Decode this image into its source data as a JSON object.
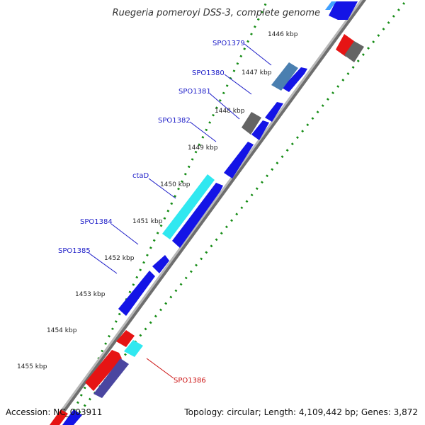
{
  "title": "Ruegeria pomeroyi DSS-3, complete genome",
  "footer": {
    "accession": "Accession: NC_003911",
    "summary": "Topology: circular; Length: 4,109,442 bp; Genes: 3,872"
  },
  "ticks": [
    "1446 kbp",
    "1447 kbp",
    "1448 kbp",
    "1449 kbp",
    "1450 kbp",
    "1451 kbp",
    "1452 kbp",
    "1453 kbp",
    "1454 kbp",
    "1455 kbp"
  ],
  "gene_labels": [
    {
      "text": "SPO1379",
      "color": "#1c1cc8"
    },
    {
      "text": "SPO1380",
      "color": "#1c1cc8"
    },
    {
      "text": "SPO1381",
      "color": "#1c1cc8"
    },
    {
      "text": "SPO1382",
      "color": "#1c1cc8"
    },
    {
      "text": "ctaD",
      "color": "#1c1cc8"
    },
    {
      "text": "SPO1384",
      "color": "#1c1cc8"
    },
    {
      "text": "SPO1385",
      "color": "#1c1cc8"
    },
    {
      "text": "SPO1386",
      "color": "#cc1111"
    }
  ],
  "colors": {
    "forward_cds": "#1414e6",
    "reverse_cds": "#e61414",
    "light_blue": "#3fa0ff",
    "cyan": "#30e8f0",
    "grey": "#646464",
    "steel": "#4a7fb0",
    "slate": "#4a46a0",
    "backbone": "#8c8c8c",
    "dots": "#158c15"
  }
}
